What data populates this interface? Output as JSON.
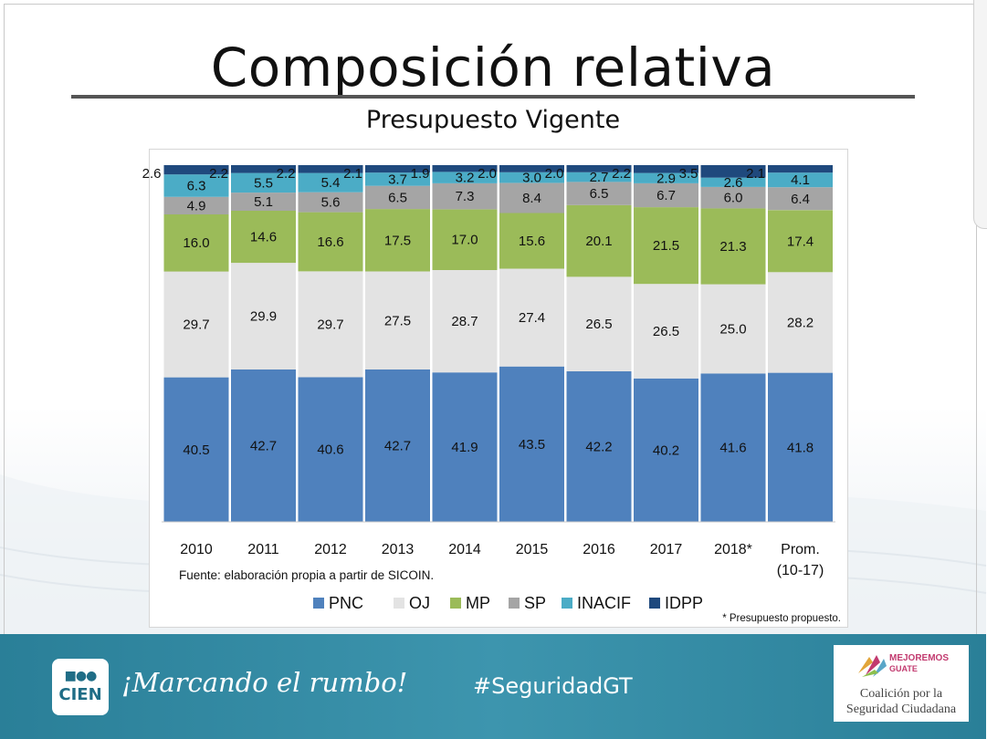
{
  "slide": {
    "title": "Composición relativa",
    "subtitle": "Presupuesto Vigente"
  },
  "chart_data": {
    "type": "bar",
    "stacked": true,
    "categories": [
      "2010",
      "2011",
      "2012",
      "2013",
      "2014",
      "2015",
      "2016",
      "2017",
      "2018*",
      "Prom."
    ],
    "category_sublabels": [
      "",
      "",
      "",
      "",
      "",
      "",
      "",
      "",
      "",
      "(10-17)"
    ],
    "series": [
      {
        "name": "PNC",
        "color": "#4f81bd",
        "values": [
          40.5,
          42.7,
          40.6,
          42.7,
          41.9,
          43.5,
          42.2,
          40.2,
          41.6,
          41.8
        ]
      },
      {
        "name": "OJ",
        "color": "#e3e3e3",
        "values": [
          29.7,
          29.9,
          29.7,
          27.5,
          28.7,
          27.4,
          26.5,
          26.5,
          25.0,
          28.2
        ]
      },
      {
        "name": "MP",
        "color": "#9bbb59",
        "values": [
          16.0,
          14.6,
          16.6,
          17.5,
          17.0,
          15.6,
          20.1,
          21.5,
          21.3,
          17.4
        ]
      },
      {
        "name": "SP",
        "color": "#a5a5a5",
        "values": [
          4.9,
          5.1,
          5.6,
          6.5,
          7.3,
          8.4,
          6.5,
          6.7,
          6.0,
          6.4
        ]
      },
      {
        "name": "INACIF",
        "color": "#4bacc6",
        "values": [
          6.3,
          5.5,
          5.4,
          3.7,
          3.2,
          3.0,
          2.7,
          2.9,
          2.6,
          4.1
        ]
      },
      {
        "name": "IDPP",
        "color": "#1f497d",
        "values": [
          2.6,
          2.2,
          2.2,
          2.1,
          1.9,
          2.0,
          2.0,
          2.2,
          3.5,
          2.1
        ]
      }
    ],
    "ylim": [
      0,
      100
    ],
    "legend_position": "bottom",
    "source_note": "Fuente: elaboración propia a partir de SICOIN.",
    "footnote": "* Presupuesto propuesto."
  },
  "footer": {
    "logo_text": "CIEN",
    "logo_mark": "■●●",
    "motto": "¡Marcando el rumbo!",
    "hashtag": "#SeguridadGT",
    "partner_top_line1": "MEJOREMOS",
    "partner_top_line2": "GUATE",
    "partner_line1": "Coalición por la",
    "partner_line2": "Seguridad Ciudadana"
  },
  "colors": {
    "footer_band": "#2a7f98",
    "label_text": "#111111"
  }
}
